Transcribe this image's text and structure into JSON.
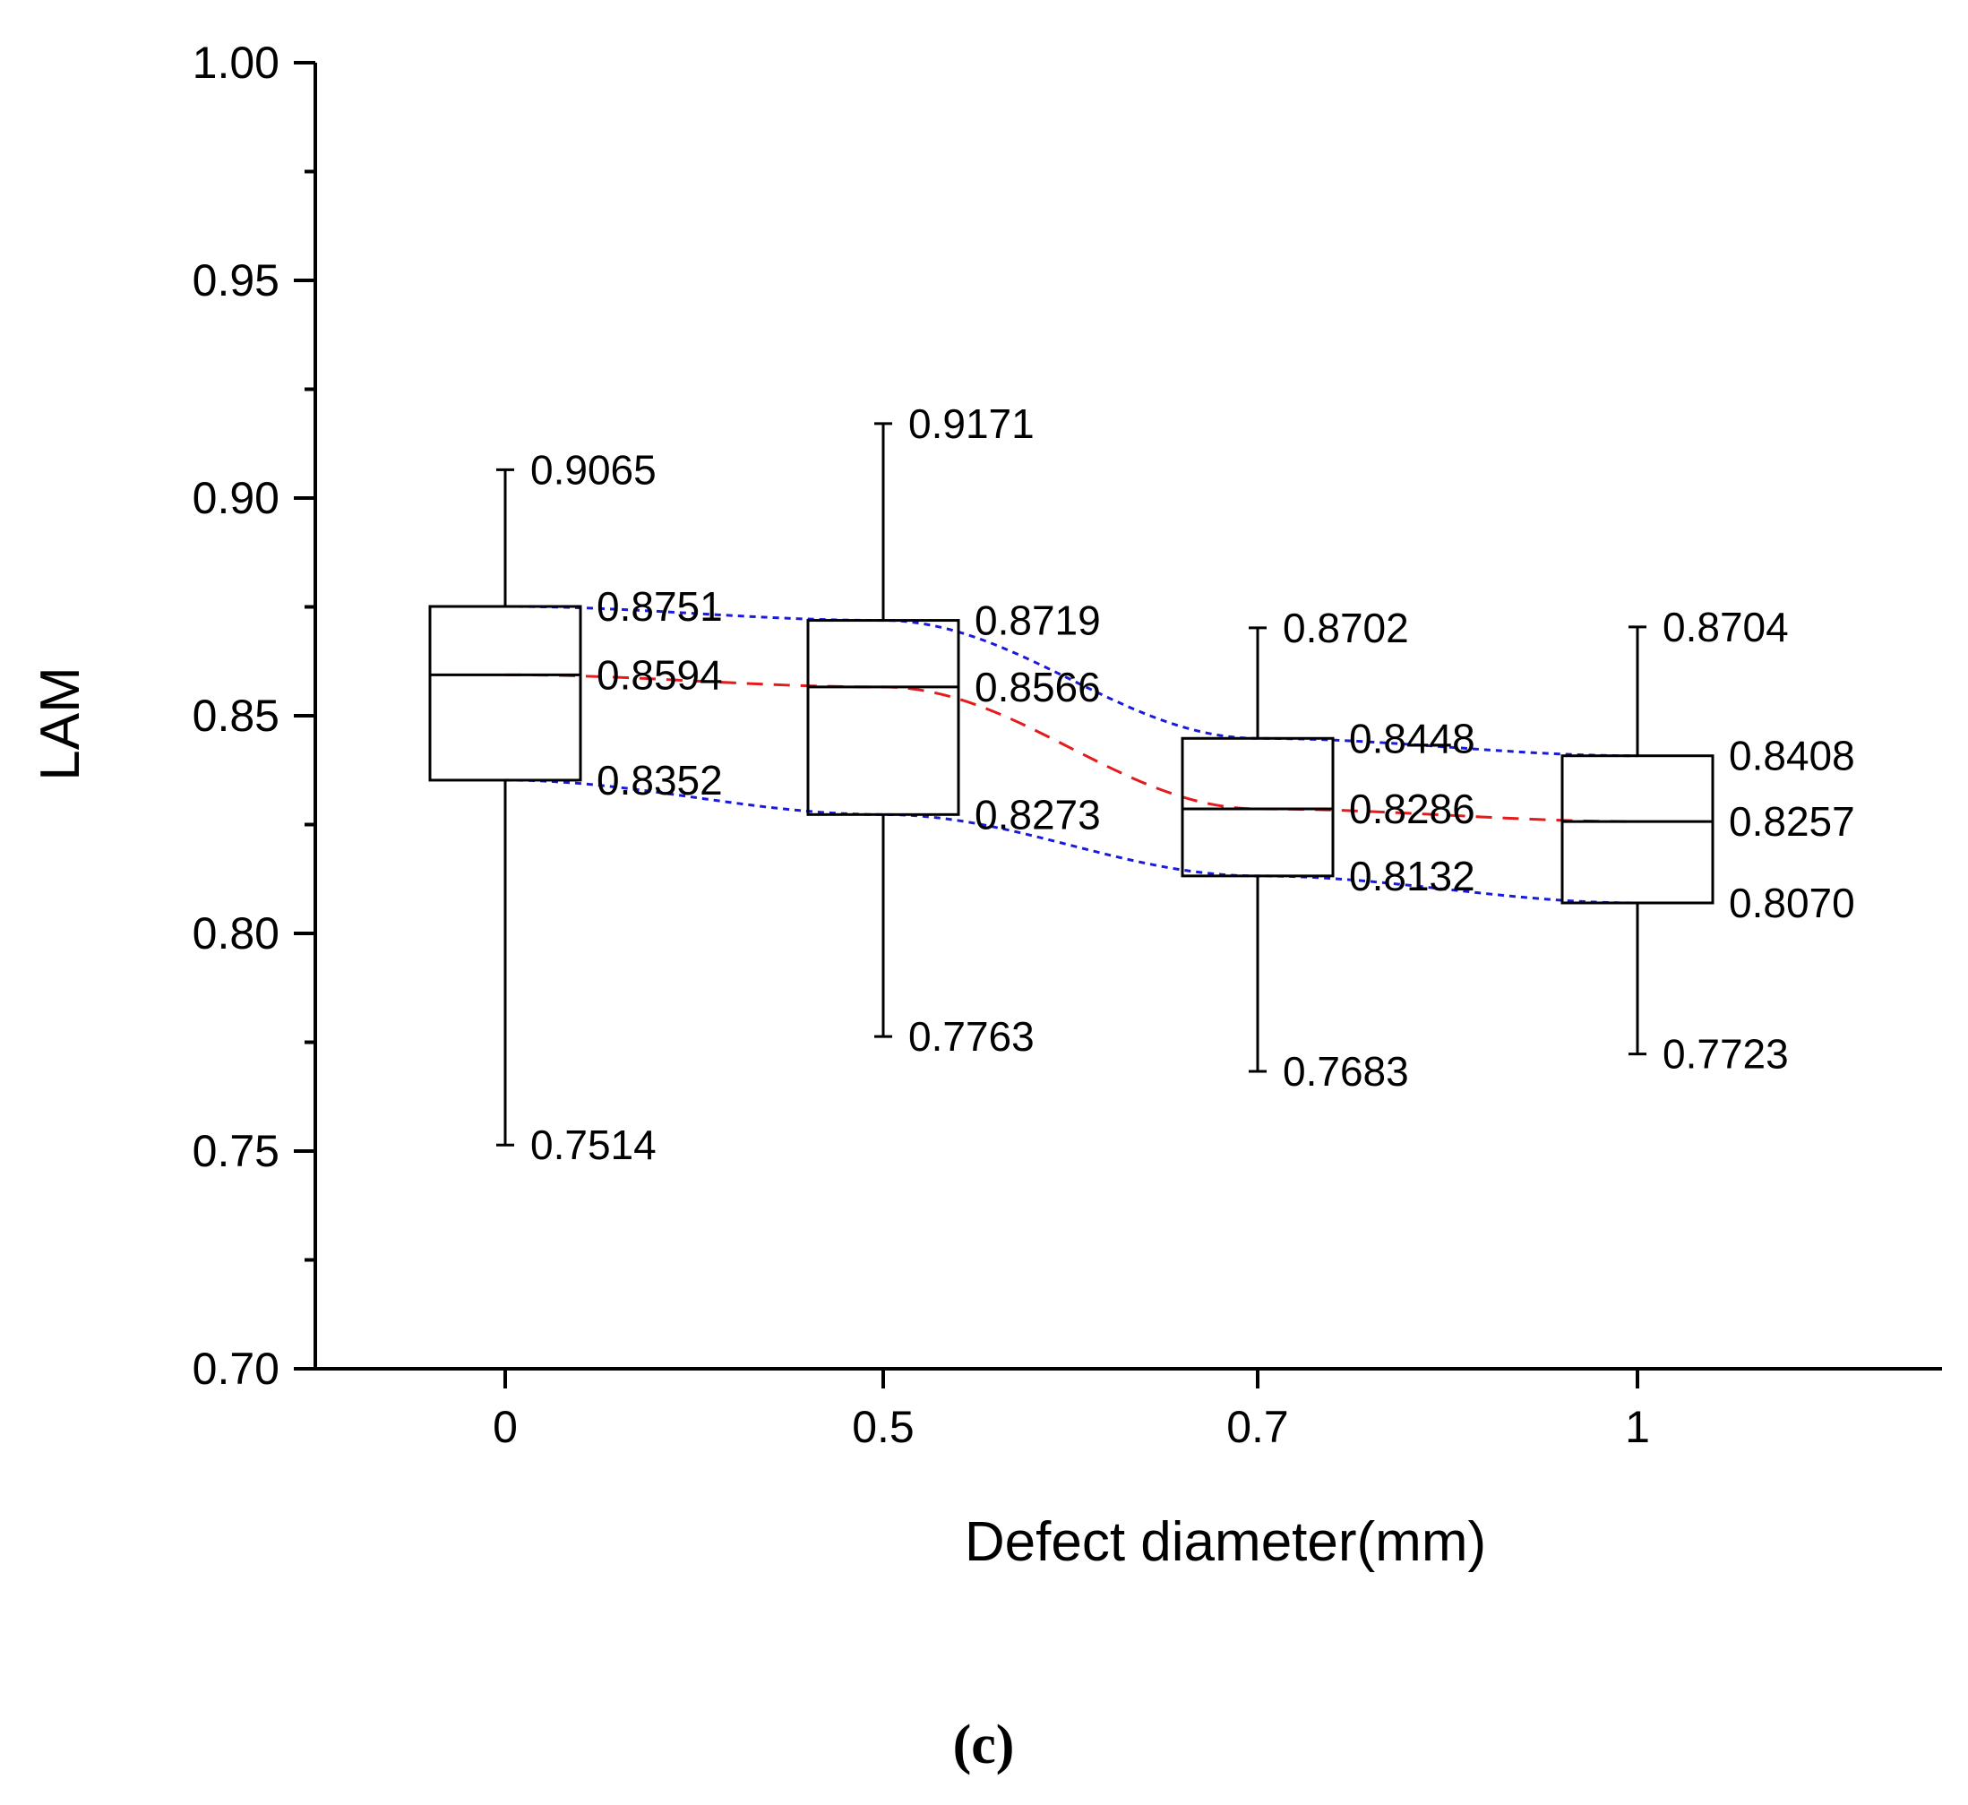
{
  "caption": "(c)",
  "chart_data": {
    "type": "box",
    "title": "",
    "xlabel": "Defect diameter(mm)",
    "ylabel": "LAM",
    "ylim": [
      0.7,
      1.0
    ],
    "y_ticks": [
      "0.70",
      "0.75",
      "0.80",
      "0.85",
      "0.90",
      "0.95",
      "1.00"
    ],
    "categories": [
      "0",
      "0.5",
      "0.7",
      "1"
    ],
    "boxes": [
      {
        "category": "0",
        "whisker_high": 0.9065,
        "q3": 0.8751,
        "median": 0.8594,
        "q1": 0.8352,
        "whisker_low": 0.7514,
        "labels": {
          "whisker_high": "0.9065",
          "q3": "0.8751",
          "median": "0.8594",
          "q1": "0.8352",
          "whisker_low": "0.7514"
        }
      },
      {
        "category": "0.5",
        "whisker_high": 0.9171,
        "q3": 0.8719,
        "median": 0.8566,
        "q1": 0.8273,
        "whisker_low": 0.7763,
        "labels": {
          "whisker_high": "0.9171",
          "q3": "0.8719",
          "median": "0.8566",
          "q1": "0.8273",
          "whisker_low": "0.7763"
        }
      },
      {
        "category": "0.7",
        "whisker_high": 0.8702,
        "q3": 0.8448,
        "median": 0.8286,
        "q1": 0.8132,
        "whisker_low": 0.7683,
        "labels": {
          "whisker_high": "0.8702",
          "q3": "0.8448",
          "median": "0.8286",
          "q1": "0.8132",
          "whisker_low": "0.7683"
        }
      },
      {
        "category": "1",
        "whisker_high": 0.8704,
        "q3": 0.8408,
        "median": 0.8257,
        "q1": 0.807,
        "whisker_low": 0.7723,
        "labels": {
          "whisker_high": "0.8704",
          "q3": "0.8408",
          "median": "0.8257",
          "q1": "0.8070",
          "whisker_low": "0.7723"
        }
      }
    ],
    "trend_lines": [
      {
        "name": "median-trend",
        "stat": "median",
        "color": "#e41a1c",
        "style": "dashed"
      },
      {
        "name": "q3-trend",
        "stat": "q3",
        "color": "#1a1adc",
        "style": "dotted"
      },
      {
        "name": "q1-trend",
        "stat": "q1",
        "color": "#1a1adc",
        "style": "dotted"
      }
    ],
    "grid": false,
    "legend": "none"
  }
}
